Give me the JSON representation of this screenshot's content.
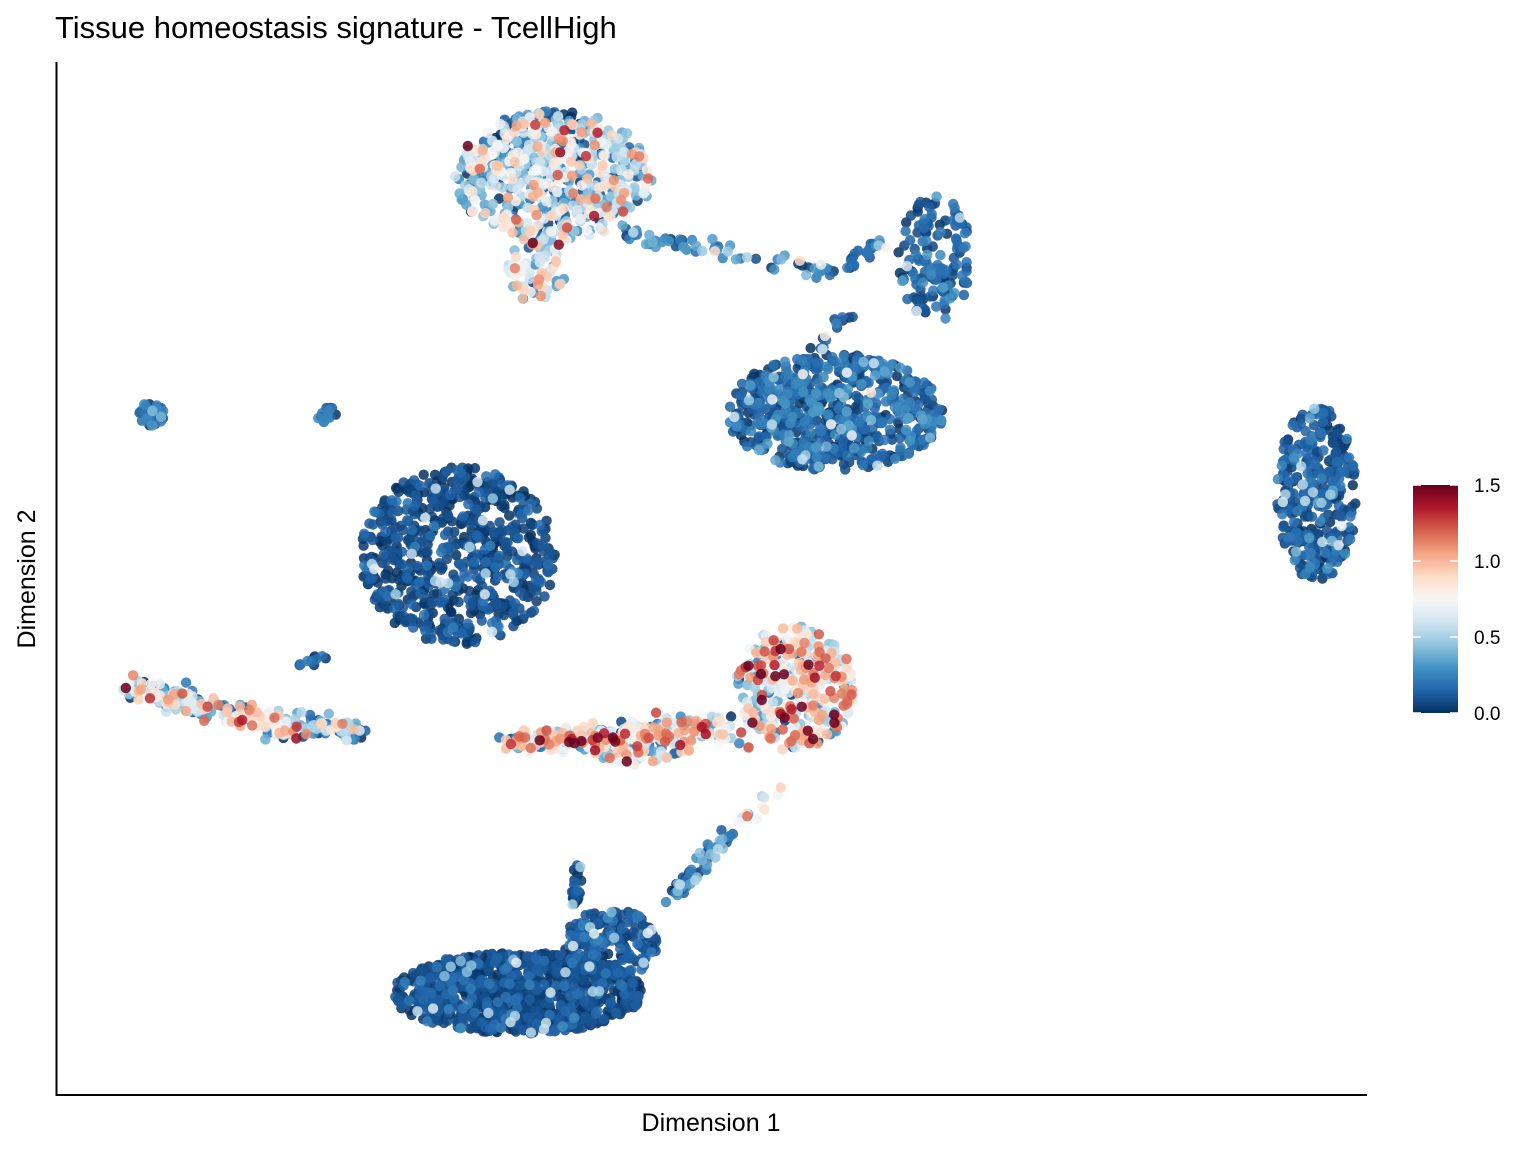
{
  "chart_data": {
    "type": "scatter",
    "title": "Tissue homeostasis signature - TcellHigh",
    "xlabel": "Dimension 1",
    "ylabel": "Dimension 2",
    "x_ticks_shown": false,
    "y_ticks_shown": false,
    "grid": false,
    "xlim": [
      0,
      100
    ],
    "ylim": [
      0,
      100
    ],
    "color_scale": {
      "name": "",
      "min": 0.0,
      "max": 1.5,
      "ticks": [
        "0.0",
        "0.5",
        "1.0",
        "1.5"
      ],
      "tick_values": [
        0.0,
        0.5,
        1.0,
        1.5
      ],
      "colors": [
        "#053061",
        "#2166ac",
        "#4393c3",
        "#92c5de",
        "#d1e5f0",
        "#f7f7f7",
        "#fddbc7",
        "#f4a582",
        "#d6604d",
        "#b2182b",
        "#67001f"
      ],
      "legend_position": "right"
    },
    "clusters": [
      {
        "cx": 37.9,
        "cy": 89.4,
        "rx": 7.6,
        "ry": 6.4,
        "n": 650,
        "mean": 0.48,
        "sd": 0.32
      },
      {
        "cx": 36.6,
        "cy": 80.6,
        "rx": 2.3,
        "ry": 3.6,
        "n": 70,
        "mean": 0.55,
        "sd": 0.32
      },
      {
        "cx": 59.5,
        "cy": 66.3,
        "rx": 8.3,
        "ry": 5.7,
        "n": 700,
        "mean": 0.12,
        "sd": 0.12
      },
      {
        "cx": 67.2,
        "cy": 81.4,
        "rx": 2.8,
        "ry": 6.2,
        "n": 140,
        "mean": 0.12,
        "sd": 0.1
      },
      {
        "cx": 96.5,
        "cy": 58.3,
        "rx": 3.1,
        "ry": 8.6,
        "n": 330,
        "mean": 0.1,
        "sd": 0.09
      },
      {
        "cx": 30.6,
        "cy": 52.3,
        "rx": 7.5,
        "ry": 8.7,
        "n": 700,
        "mean": 0.05,
        "sd": 0.07
      },
      {
        "cx": 7.0,
        "cy": 66.2,
        "rx": 1.0,
        "ry": 1.2,
        "n": 35,
        "mean": 0.15,
        "sd": 0.1
      },
      {
        "cx": 20.5,
        "cy": 66.1,
        "rx": 0.8,
        "ry": 0.8,
        "n": 15,
        "mean": 0.2,
        "sd": 0.12
      },
      {
        "cx": 56.4,
        "cy": 39.3,
        "rx": 4.6,
        "ry": 6.1,
        "n": 350,
        "mean": 0.75,
        "sd": 0.33
      },
      {
        "cx": 44.5,
        "cy": 33.7,
        "rx": 4.0,
        "ry": 1.9,
        "n": 120,
        "mean": 0.65,
        "sd": 0.33
      },
      {
        "cx": 35.1,
        "cy": 9.5,
        "rx": 9.6,
        "ry": 4.0,
        "n": 900,
        "mean": 0.05,
        "sd": 0.07
      },
      {
        "cx": 42.3,
        "cy": 14.3,
        "rx": 3.6,
        "ry": 3.4,
        "n": 200,
        "mean": 0.08,
        "sd": 0.08
      }
    ],
    "paths": [
      {
        "x0": 43.0,
        "y0": 84.0,
        "x1": 59.5,
        "y1": 80.0,
        "n": 60,
        "spread": 0.8,
        "mean": 0.2,
        "sd": 0.15
      },
      {
        "x0": 59.5,
        "y0": 80.0,
        "x1": 63.0,
        "y1": 83.0,
        "n": 25,
        "spread": 0.6,
        "mean": 0.12,
        "sd": 0.1
      },
      {
        "x0": 58.0,
        "y0": 72.0,
        "x1": 60.5,
        "y1": 75.5,
        "n": 15,
        "spread": 0.8,
        "mean": 0.1,
        "sd": 0.08
      },
      {
        "x0": 5.5,
        "y0": 39.5,
        "x1": 18.5,
        "y1": 35.0,
        "n": 190,
        "spread": 1.2,
        "mean": 0.6,
        "sd": 0.35
      },
      {
        "x0": 18.0,
        "y0": 36.0,
        "x1": 23.0,
        "y1": 35.0,
        "n": 60,
        "spread": 1.0,
        "mean": 0.35,
        "sd": 0.3
      },
      {
        "x0": 18.0,
        "y0": 41.5,
        "x1": 20.5,
        "y1": 42.5,
        "n": 12,
        "spread": 0.4,
        "mean": 0.1,
        "sd": 0.08
      },
      {
        "x0": 34.5,
        "y0": 34.0,
        "x1": 52.0,
        "y1": 35.5,
        "n": 260,
        "spread": 1.2,
        "mean": 0.65,
        "sd": 0.35
      },
      {
        "x0": 47.0,
        "y0": 19.0,
        "x1": 51.5,
        "y1": 25.0,
        "n": 60,
        "spread": 0.7,
        "mean": 0.2,
        "sd": 0.15
      },
      {
        "x0": 39.5,
        "y0": 18.0,
        "x1": 39.9,
        "y1": 22.0,
        "n": 25,
        "spread": 0.4,
        "mean": 0.05,
        "sd": 0.05
      },
      {
        "x0": 51.5,
        "y0": 25.5,
        "x1": 55.5,
        "y1": 29.5,
        "n": 12,
        "spread": 0.5,
        "mean": 0.6,
        "sd": 0.2
      }
    ]
  }
}
